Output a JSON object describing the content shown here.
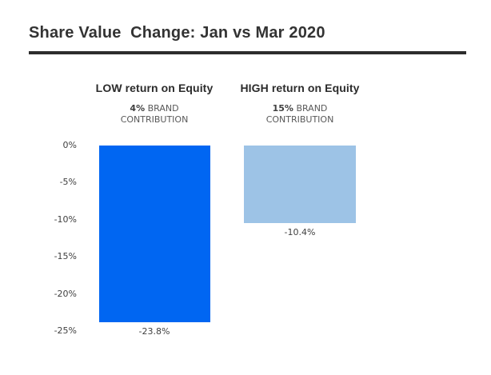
{
  "title": "Share Value  Change: Jan vs Mar 2020",
  "colors": {
    "title_text": "#333333",
    "divider": "#2d2d2d",
    "axis_text": "#404040",
    "sublabel_text": "#595959",
    "bar_low": "#0066f2",
    "bar_high": "#9dc3e6"
  },
  "chart_data": {
    "type": "bar",
    "title": "Share Value Change: Jan vs Mar 2020",
    "categories": [
      "LOW return on Equity",
      "HIGH return on Equity"
    ],
    "values": [
      -23.8,
      -10.4
    ],
    "value_labels": [
      "-23.8%",
      "-10.4%"
    ],
    "groups": [
      {
        "key": "low-return-on-equity",
        "header": "LOW return on Equity",
        "sub_bold": "4%",
        "sub_rest": "BRAND CONTRIBUTION",
        "value": -23.8,
        "value_label": "-23.8%",
        "color": "#0066f2"
      },
      {
        "key": "high-return-on-equity",
        "header": "HIGH return on Equity",
        "sub_bold": "15%",
        "sub_rest": "BRAND CONTRIBUTION",
        "value": -10.4,
        "value_label": "-10.4%",
        "color": "#9dc3e6"
      }
    ],
    "xlabel": "",
    "ylabel": "",
    "ylim": [
      -25,
      0
    ],
    "ytick_labels": [
      "0%",
      "-5%",
      "-10%",
      "-15%",
      "-20%",
      "-25%"
    ],
    "grid": false,
    "legend": "none"
  }
}
